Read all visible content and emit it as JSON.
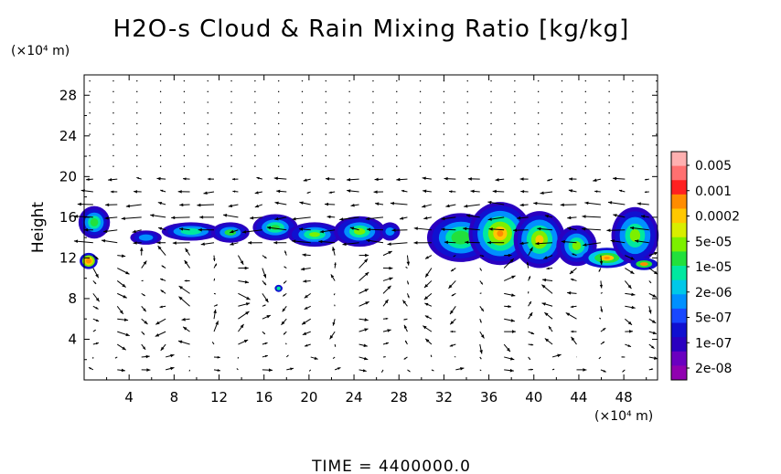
{
  "chart_data": {
    "type": "heatmap",
    "title": "H2O-s Cloud & Rain Mixing Ratio [kg/kg]",
    "xlabel": "",
    "ylabel": "Height",
    "x_units": "(×10⁴ m)",
    "y_units": "(×10⁴ m)",
    "xlim": [
      0,
      51
    ],
    "ylim": [
      0,
      30
    ],
    "xticks": [
      4,
      8,
      12,
      16,
      20,
      24,
      28,
      32,
      36,
      40,
      44,
      48
    ],
    "yticks": [
      4,
      8,
      12,
      16,
      20,
      24,
      28
    ],
    "colorbar": {
      "labels": [
        "0.005",
        "0.001",
        "0.0002",
        "5e-05",
        "1e-05",
        "2e-06",
        "5e-07",
        "1e-07",
        "2e-08"
      ],
      "colors": [
        "#ffb0b0",
        "#ff7070",
        "#ff2020",
        "#ff8c00",
        "#ffc800",
        "#d8ee00",
        "#7cf000",
        "#22e03c",
        "#00e8a0",
        "#00c8e8",
        "#0090ff",
        "#1848ff",
        "#1010d0",
        "#2a00c0",
        "#6a00c0",
        "#9000b0"
      ]
    },
    "cloud_regions": [
      {
        "x": [
          0,
          2
        ],
        "y": [
          14,
          17
        ],
        "max": "1e-05"
      },
      {
        "x": [
          0,
          1
        ],
        "y": [
          11,
          12.5
        ],
        "max": "0.0002"
      },
      {
        "x": [
          4,
          14
        ],
        "y": [
          13.5,
          15.5
        ],
        "max": "5e-05"
      },
      {
        "x": [
          15,
          28
        ],
        "y": [
          13,
          16.5
        ],
        "max": "1e-05"
      },
      {
        "x": [
          30,
          45
        ],
        "y": [
          11,
          18
        ],
        "max": "0.0002"
      },
      {
        "x": [
          45,
          51
        ],
        "y": [
          11,
          17.5
        ],
        "max": "0.0002"
      }
    ],
    "vectors": "wind field arrows"
  },
  "footer": {
    "time_label": "TIME  =  4400000.0"
  }
}
